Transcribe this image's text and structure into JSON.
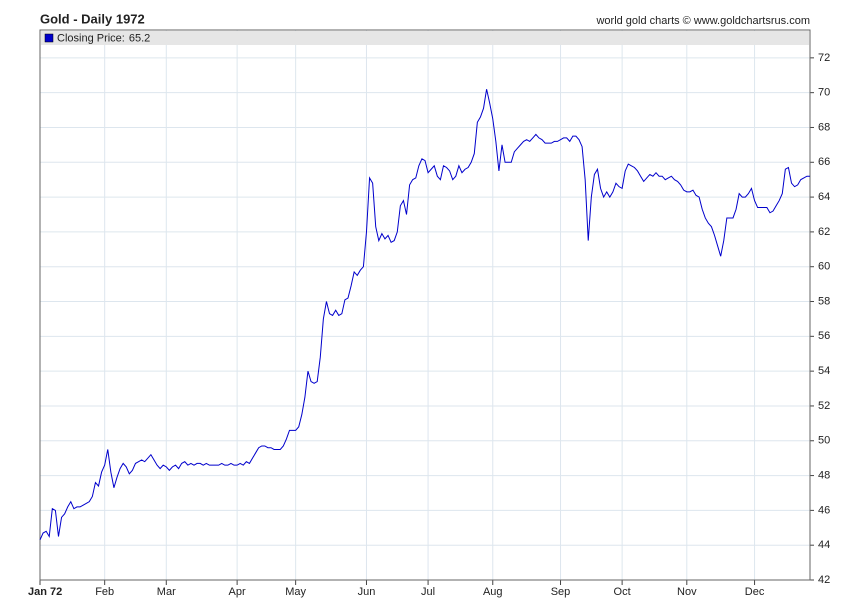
{
  "chart_data": {
    "type": "line",
    "title": "Gold - Daily 1972",
    "credit": "world gold charts © www.goldchartsrus.com",
    "categories": [
      "Jan 72",
      null,
      null,
      null,
      null,
      null,
      null,
      null,
      null,
      null,
      null,
      null,
      null,
      null,
      null,
      null,
      null,
      null,
      null,
      null,
      null,
      "Feb",
      null,
      null,
      null,
      null,
      null,
      null,
      null,
      null,
      null,
      null,
      null,
      null,
      null,
      null,
      null,
      null,
      null,
      null,
      null,
      "Mar",
      null,
      null,
      null,
      null,
      null,
      null,
      null,
      null,
      null,
      null,
      null,
      null,
      null,
      null,
      null,
      null,
      null,
      null,
      null,
      null,
      null,
      null,
      "Apr",
      null,
      null,
      null,
      null,
      null,
      null,
      null,
      null,
      null,
      null,
      null,
      null,
      null,
      null,
      null,
      null,
      null,
      null,
      "May",
      null,
      null,
      null,
      null,
      null,
      null,
      null,
      null,
      null,
      null,
      null,
      null,
      null,
      null,
      null,
      null,
      null,
      null,
      null,
      null,
      null,
      null,
      "Jun",
      null,
      null,
      null,
      null,
      null,
      null,
      null,
      null,
      null,
      null,
      null,
      null,
      null,
      null,
      null,
      null,
      null,
      null,
      null,
      "Jul",
      null,
      null,
      null,
      null,
      null,
      null,
      null,
      null,
      null,
      null,
      null,
      null,
      null,
      null,
      null,
      null,
      null,
      null,
      null,
      null,
      "Aug",
      null,
      null,
      null,
      null,
      null,
      null,
      null,
      null,
      null,
      null,
      null,
      null,
      null,
      null,
      null,
      null,
      null,
      null,
      null,
      null,
      null,
      "Sep",
      null,
      null,
      null,
      null,
      null,
      null,
      null,
      null,
      null,
      null,
      null,
      null,
      null,
      null,
      null,
      null,
      null,
      null,
      null,
      "Oct",
      null,
      null,
      null,
      null,
      null,
      null,
      null,
      null,
      null,
      null,
      null,
      null,
      null,
      null,
      null,
      null,
      null,
      null,
      null,
      null,
      "Nov",
      null,
      null,
      null,
      null,
      null,
      null,
      null,
      null,
      null,
      null,
      null,
      null,
      null,
      null,
      null,
      null,
      null,
      null,
      null,
      null,
      null,
      "Dec",
      null,
      null,
      null,
      null,
      null,
      null,
      null,
      null,
      null,
      null,
      null,
      null,
      null,
      null,
      null,
      null,
      null,
      null
    ],
    "series": [
      {
        "name": "Closing Price:",
        "color": "#0000cc",
        "values": [
          44.3,
          44.7,
          44.8,
          44.5,
          46.1,
          46.0,
          44.5,
          45.6,
          45.8,
          46.2,
          46.5,
          46.1,
          46.2,
          46.2,
          46.3,
          46.4,
          46.5,
          46.8,
          47.6,
          47.4,
          48.2,
          48.6,
          49.5,
          48.2,
          47.3,
          47.9,
          48.4,
          48.7,
          48.5,
          48.1,
          48.3,
          48.7,
          48.8,
          48.9,
          48.8,
          49.0,
          49.2,
          48.9,
          48.6,
          48.4,
          48.6,
          48.5,
          48.3,
          48.5,
          48.6,
          48.4,
          48.7,
          48.8,
          48.6,
          48.7,
          48.6,
          48.7,
          48.7,
          48.6,
          48.7,
          48.6,
          48.6,
          48.6,
          48.6,
          48.7,
          48.6,
          48.6,
          48.7,
          48.6,
          48.6,
          48.7,
          48.6,
          48.8,
          48.7,
          49.0,
          49.3,
          49.6,
          49.7,
          49.7,
          49.6,
          49.6,
          49.5,
          49.5,
          49.5,
          49.7,
          50.1,
          50.6,
          50.6,
          50.6,
          50.8,
          51.5,
          52.5,
          54.0,
          53.4,
          53.3,
          53.4,
          54.8,
          57.0,
          58.0,
          57.3,
          57.2,
          57.5,
          57.2,
          57.3,
          58.1,
          58.2,
          58.9,
          59.7,
          59.5,
          59.8,
          60.0,
          62.0,
          65.1,
          64.8,
          62.3,
          61.5,
          61.9,
          61.6,
          61.8,
          61.4,
          61.5,
          62.0,
          63.5,
          63.8,
          63.0,
          64.7,
          65.0,
          65.1,
          65.8,
          66.2,
          66.1,
          65.4,
          65.6,
          65.8,
          65.2,
          65.0,
          65.8,
          65.7,
          65.5,
          65.0,
          65.2,
          65.8,
          65.4,
          65.6,
          65.7,
          66.0,
          66.5,
          68.3,
          68.6,
          69.1,
          70.2,
          69.4,
          68.5,
          67.2,
          65.5,
          67.0,
          66.0,
          66.0,
          66.0,
          66.6,
          66.8,
          67.0,
          67.2,
          67.3,
          67.2,
          67.4,
          67.6,
          67.4,
          67.3,
          67.1,
          67.1,
          67.1,
          67.2,
          67.2,
          67.3,
          67.4,
          67.4,
          67.2,
          67.5,
          67.5,
          67.3,
          66.9,
          65.0,
          61.5,
          64.0,
          65.3,
          65.6,
          64.5,
          64.0,
          64.3,
          64.0,
          64.3,
          64.8,
          64.6,
          64.5,
          65.5,
          65.9,
          65.8,
          65.7,
          65.5,
          65.2,
          64.9,
          65.1,
          65.3,
          65.2,
          65.4,
          65.2,
          65.2,
          65.0,
          65.1,
          65.2,
          65.0,
          64.9,
          64.7,
          64.4,
          64.3,
          64.3,
          64.4,
          64.1,
          64.0,
          63.3,
          62.8,
          62.5,
          62.3,
          61.8,
          61.2,
          60.6,
          61.5,
          62.8,
          62.8,
          62.8,
          63.3,
          64.2,
          64.0,
          64.0,
          64.2,
          64.5,
          63.8,
          63.4,
          63.4,
          63.4,
          63.4,
          63.1,
          63.2,
          63.5,
          63.8,
          64.2,
          65.6,
          65.7,
          64.8,
          64.6,
          64.7,
          65.0,
          65.1,
          65.2,
          65.2
        ]
      }
    ],
    "ylim": [
      42,
      73.6
    ],
    "yticks": [
      42,
      44,
      46,
      48,
      50,
      52,
      54,
      56,
      58,
      60,
      62,
      64,
      66,
      68,
      70,
      72
    ],
    "grid": true
  }
}
